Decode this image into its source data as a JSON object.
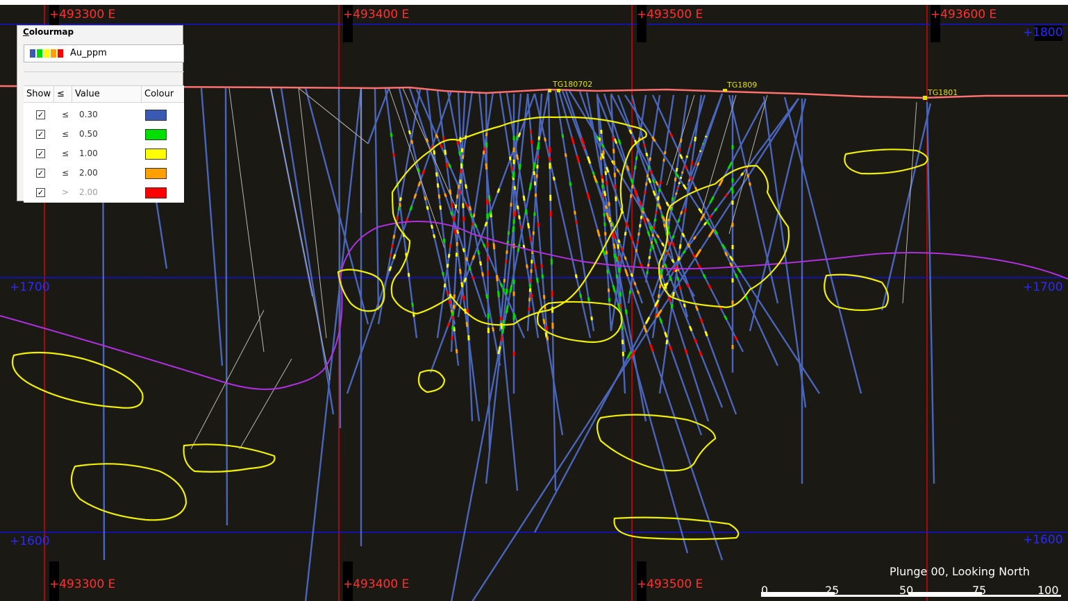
{
  "view": {
    "easting_labels": [
      "+493300 E",
      "+493400 E",
      "+493500 E",
      "+493600 E"
    ],
    "northing_labels_right": [
      "+1800",
      "+1700",
      "+1600"
    ],
    "northing_labels_left": [
      "+1700",
      "+1600"
    ],
    "plunge_text": "Plunge 00, Looking North",
    "scale_bar": [
      "0",
      "25",
      "50",
      "75",
      "100"
    ],
    "hole_labels": [
      "TG180702",
      "TG1809",
      "TG1801"
    ]
  },
  "colourmap": {
    "title": "Colourmap",
    "selected": "Au_ppm",
    "headers": {
      "show": "Show",
      "le": "≤",
      "value": "Value",
      "colour": "Colour"
    },
    "rows": [
      {
        "show": true,
        "op": "≤",
        "value": "0.30",
        "color": "#3a59b3"
      },
      {
        "show": true,
        "op": "≤",
        "value": "0.50",
        "color": "#00e000"
      },
      {
        "show": true,
        "op": "≤",
        "value": "1.00",
        "color": "#ffff00"
      },
      {
        "show": true,
        "op": "≤",
        "value": "2.00",
        "color": "#ffa000"
      },
      {
        "show": true,
        "op": ">",
        "value": "2.00",
        "color": "#ff0000"
      }
    ]
  },
  "colors": {
    "background": "#1b1914",
    "grid_easting": "#ff0000",
    "grid_northing": "#1010ff",
    "topography": "#ff7070",
    "contact_line": "#b030e0",
    "ore_outline": "#f0f000",
    "drillhole": "#4a66bb"
  }
}
